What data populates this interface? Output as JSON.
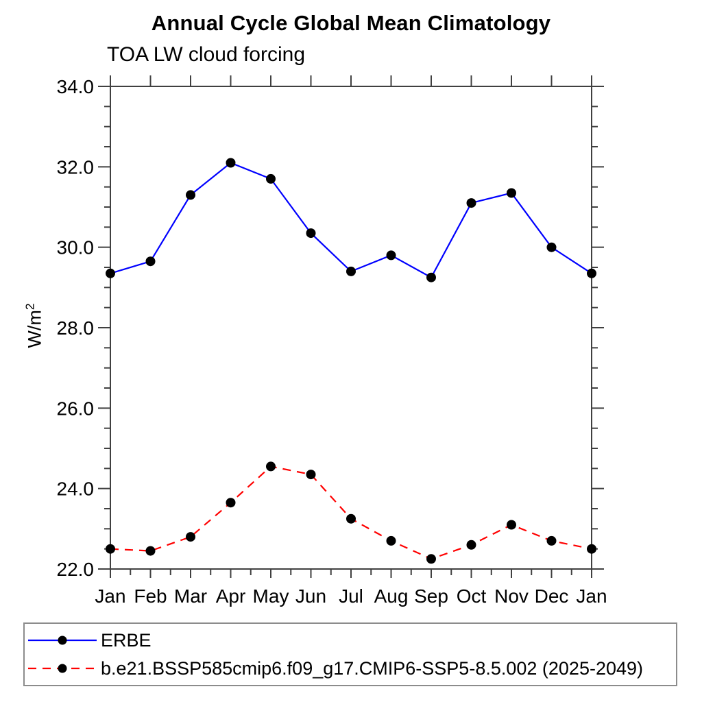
{
  "chart_data": {
    "type": "line",
    "title": "Annual Cycle Global Mean Climatology",
    "subtitle": "TOA LW cloud forcing",
    "ylabel_base": "W/m",
    "ylabel_exponent": "2",
    "categories": [
      "Jan",
      "Feb",
      "Mar",
      "Apr",
      "May",
      "Jun",
      "Jul",
      "Aug",
      "Sep",
      "Oct",
      "Nov",
      "Dec",
      "Jan"
    ],
    "ylim": [
      22.0,
      34.0
    ],
    "ytick_major_step": 2.0,
    "ytick_minor_step": 0.5,
    "ytick_labels": [
      "22.0",
      "24.0",
      "26.0",
      "28.0",
      "30.0",
      "32.0",
      "34.0"
    ],
    "grid": false,
    "legend_position": "bottom-left",
    "frame_color": "#404040",
    "text_color": "#000000",
    "marker": "filled-circle",
    "marker_color": "#000000",
    "legend_border_color": "#8c8c8c",
    "series": [
      {
        "name": "ERBE",
        "color": "#0000ff",
        "line_style": "solid",
        "values": [
          29.35,
          29.65,
          31.3,
          32.1,
          31.7,
          30.35,
          29.4,
          29.8,
          29.25,
          31.1,
          31.35,
          30.0,
          29.35
        ]
      },
      {
        "name": "b.e21.BSSP585cmip6.f09_g17.CMIP6-SSP5-8.5.002 (2025-2049)",
        "color": "#ff0000",
        "line_style": "dashed",
        "values": [
          22.5,
          22.45,
          22.8,
          23.65,
          24.55,
          24.35,
          23.25,
          22.7,
          22.25,
          22.6,
          23.1,
          22.7,
          22.5
        ]
      }
    ]
  }
}
